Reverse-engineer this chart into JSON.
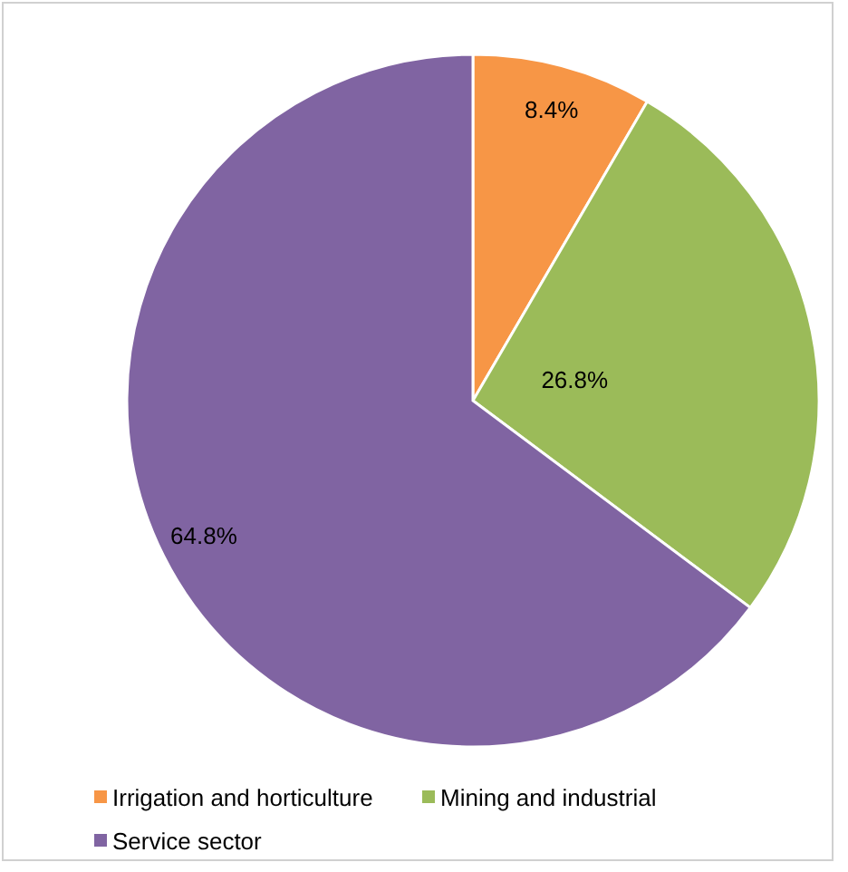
{
  "chart_data": {
    "type": "pie",
    "categories": [
      "Irrigation and horticulture",
      "Mining and industrial",
      "Service sector"
    ],
    "values": [
      8.4,
      26.8,
      64.8
    ],
    "colors": [
      "#f79646",
      "#9bbb59",
      "#8064a2"
    ],
    "data_labels": true,
    "value_labels": [
      "8.4%",
      "26.8%",
      "64.8%"
    ],
    "legend": "bottom"
  }
}
